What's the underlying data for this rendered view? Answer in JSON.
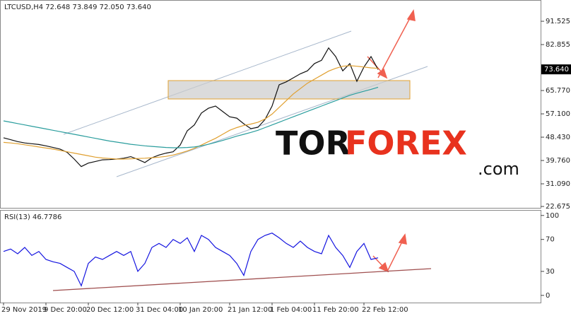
{
  "chart_data": [
    {
      "type": "line",
      "title": "LTCUSD,H4  72.648 73.849 72.050 73.640",
      "ylim": [
        21.9,
        98.9
      ],
      "yticks": [
        91.525,
        82.855,
        {
          "value": 65.77,
          "label": "65.770"
        },
        {
          "value": 57.1,
          "label": "57.100"
        },
        {
          "value": 48.43,
          "label": "48.430"
        },
        {
          "value": 39.76,
          "label": "39.760"
        },
        {
          "value": 31.09,
          "label": "31.090"
        },
        22.675
      ],
      "grid": false,
      "last_price": {
        "value": 73.64,
        "label": "73.640"
      },
      "series": [
        {
          "color": "#111111",
          "values": [
            48.2,
            47.5,
            46.8,
            46.3,
            46.0,
            45.7,
            45.2,
            44.6,
            44.0,
            42.8,
            40.3,
            37.5,
            38.8,
            39.4,
            40.0,
            40.1,
            40.3,
            40.6,
            41.2,
            40.2,
            39.0,
            40.8,
            41.8,
            42.5,
            43.0,
            45.5,
            50.8,
            53.0,
            57.4,
            59.2,
            60.0,
            58.0,
            56.0,
            55.5,
            53.4,
            51.6,
            52.1,
            55.0,
            60.0,
            67.9,
            69.0,
            70.5,
            72.0,
            73.1,
            75.8,
            77.0,
            81.6,
            78.4,
            73.1,
            75.8,
            69.2,
            74.5,
            78.4,
            73.6
          ]
        },
        {
          "color": "#e0a030",
          "values": [
            46.5,
            46.3,
            46.0,
            45.6,
            45.2,
            44.8,
            44.4,
            44.0,
            43.5,
            43.0,
            42.5,
            42.0,
            41.5,
            41.0,
            40.7,
            40.5,
            40.3,
            40.3,
            40.4,
            40.5,
            40.6,
            40.8,
            41.0,
            41.3,
            41.8,
            42.5,
            43.3,
            44.3,
            45.5,
            46.8,
            48.0,
            49.5,
            51.0,
            52.0,
            52.8,
            53.3,
            54.0,
            55.2,
            57.0,
            59.5,
            62.0,
            64.5,
            66.5,
            68.5,
            70.0,
            71.5,
            73.0,
            74.0,
            74.8,
            75.0,
            74.8,
            74.5,
            74.2,
            74.0
          ]
        },
        {
          "color": "#2a9d9d",
          "values": [
            54.5,
            54.0,
            53.5,
            53.0,
            52.5,
            52.0,
            51.5,
            51.0,
            50.5,
            50.0,
            49.5,
            49.0,
            48.5,
            48.0,
            47.5,
            47.0,
            46.6,
            46.2,
            45.8,
            45.5,
            45.2,
            45.0,
            44.8,
            44.6,
            44.5,
            44.5,
            44.6,
            44.8,
            45.2,
            45.8,
            46.5,
            47.2,
            48.0,
            48.8,
            49.5,
            50.2,
            51.0,
            52.0,
            53.0,
            54.0,
            55.0,
            56.0,
            57.0,
            58.0,
            59.0,
            60.0,
            61.0,
            62.0,
            63.0,
            64.0,
            64.8,
            65.5,
            66.2,
            67.0
          ]
        }
      ]
    },
    {
      "type": "line",
      "title": "RSI(13) 46.7786",
      "ylim": [
        -9,
        106
      ],
      "yticks": [
        100,
        70,
        30,
        0
      ],
      "grid": false,
      "categories": [
        "29 Nov 2019",
        null,
        null,
        null,
        null,
        null,
        "9 Dec 20:00",
        null,
        null,
        null,
        null,
        null,
        "20 Dec 12:00",
        null,
        null,
        null,
        null,
        null,
        null,
        "31 Dec 04:00",
        null,
        null,
        null,
        null,
        null,
        "10 Jan 20:00",
        null,
        null,
        null,
        null,
        null,
        null,
        "21 Jan 12:00",
        null,
        null,
        null,
        null,
        null,
        "1 Feb 04:00",
        null,
        null,
        null,
        null,
        null,
        "11 Feb 20:00",
        null,
        null,
        null,
        null,
        null,
        null,
        "22 Feb 12:00",
        null,
        null
      ],
      "series": [
        {
          "color": "#1515e0",
          "values": [
            55,
            58,
            52,
            60,
            50,
            55,
            45,
            42,
            40,
            35,
            30,
            12,
            40,
            48,
            45,
            50,
            55,
            50,
            55,
            30,
            40,
            60,
            65,
            60,
            70,
            65,
            72,
            55,
            75,
            70,
            60,
            55,
            50,
            40,
            25,
            55,
            70,
            75,
            78,
            72,
            65,
            60,
            68,
            60,
            55,
            52,
            75,
            60,
            50,
            35,
            55,
            65,
            45,
            47
          ]
        }
      ]
    }
  ],
  "watermark": {
    "parts": [
      "TOR",
      "FOREX",
      ".com"
    ]
  }
}
